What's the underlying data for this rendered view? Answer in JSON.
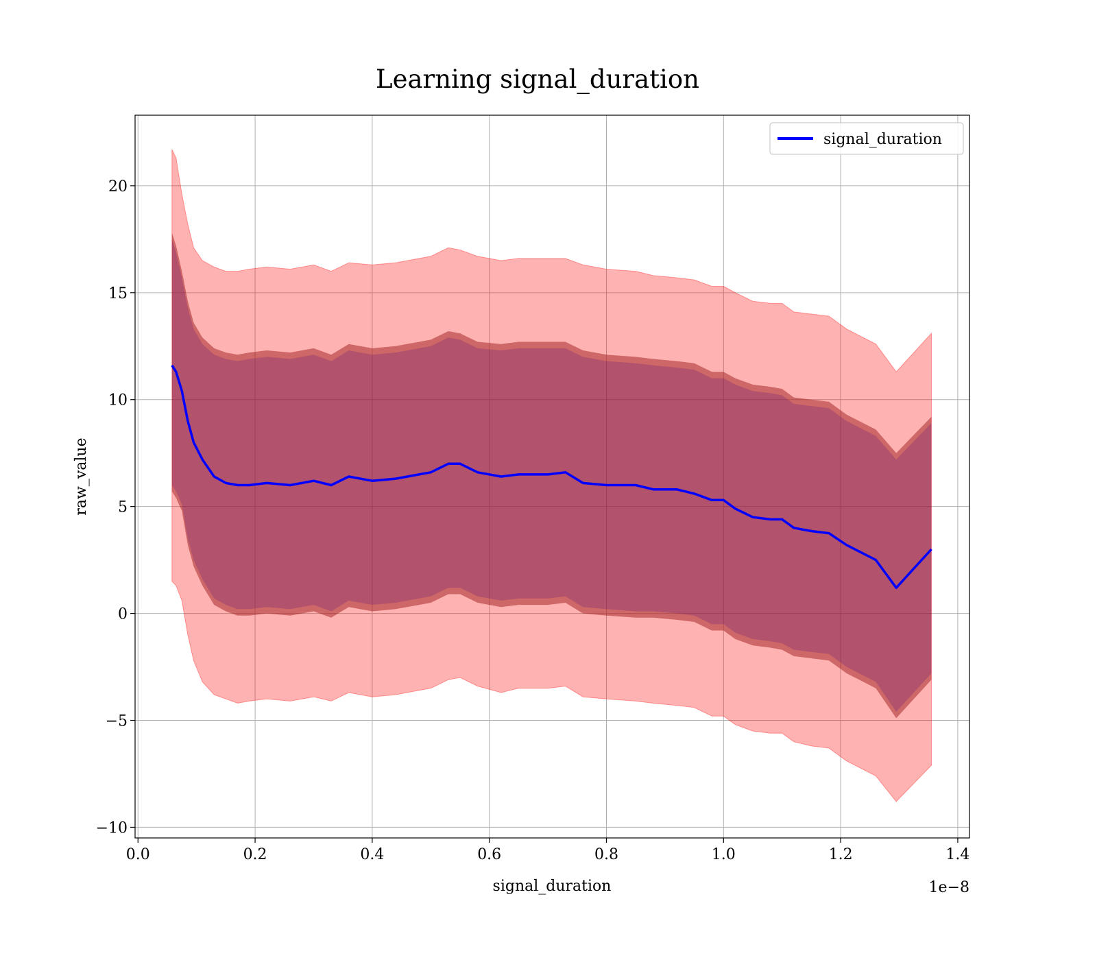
{
  "chart_data": {
    "type": "area",
    "title": "Learning signal_duration",
    "xlabel": "signal_duration",
    "ylabel": "raw_value",
    "x_offset_label": "1e−8",
    "xlim": [
      -0.005,
      1.42
    ],
    "ylim": [
      -10.5,
      23.3
    ],
    "x_ticks": [
      0.0,
      0.2,
      0.4,
      0.6,
      0.8,
      1.0,
      1.2,
      1.4
    ],
    "x_tick_labels": [
      "0.0",
      "0.2",
      "0.4",
      "0.6",
      "0.8",
      "1.0",
      "1.2",
      "1.4"
    ],
    "y_ticks": [
      -10,
      -5,
      0,
      5,
      10,
      15,
      20
    ],
    "y_tick_labels": [
      "−10",
      "−5",
      "0",
      "5",
      "10",
      "15",
      "20"
    ],
    "grid": true,
    "legend_position": "top-right",
    "colors": {
      "line": "#0000ff",
      "outer_band": "#ff0000",
      "inner_band": "#a52a2a",
      "mean_band": "#4b0082"
    },
    "x": [
      0.058,
      0.065,
      0.075,
      0.085,
      0.095,
      0.11,
      0.13,
      0.15,
      0.17,
      0.19,
      0.22,
      0.26,
      0.3,
      0.33,
      0.36,
      0.4,
      0.44,
      0.48,
      0.5,
      0.53,
      0.55,
      0.58,
      0.62,
      0.65,
      0.7,
      0.73,
      0.76,
      0.8,
      0.85,
      0.88,
      0.92,
      0.95,
      0.98,
      1.0,
      1.02,
      1.05,
      1.08,
      1.1,
      1.12,
      1.15,
      1.18,
      1.21,
      1.26,
      1.295,
      1.355
    ],
    "series": [
      {
        "name": "signal_duration",
        "values": [
          11.6,
          11.3,
          10.4,
          9.0,
          8.0,
          7.2,
          6.4,
          6.1,
          6.0,
          6.0,
          6.1,
          6.0,
          6.2,
          6.0,
          6.4,
          6.2,
          6.3,
          6.5,
          6.6,
          7.0,
          7.0,
          6.6,
          6.4,
          6.5,
          6.5,
          6.6,
          6.1,
          6.0,
          6.0,
          5.8,
          5.8,
          5.6,
          5.3,
          5.3,
          4.9,
          4.5,
          4.4,
          4.4,
          4.0,
          3.85,
          3.75,
          3.2,
          2.5,
          1.2,
          3.0
        ]
      }
    ],
    "bands": {
      "outer_upper": [
        21.7,
        21.3,
        19.6,
        18.2,
        17.1,
        16.5,
        16.2,
        16.0,
        16.0,
        16.1,
        16.2,
        16.1,
        16.3,
        16.0,
        16.4,
        16.3,
        16.4,
        16.6,
        16.7,
        17.1,
        17.0,
        16.7,
        16.5,
        16.6,
        16.6,
        16.6,
        16.3,
        16.1,
        16.0,
        15.8,
        15.7,
        15.6,
        15.3,
        15.3,
        15.0,
        14.6,
        14.5,
        14.5,
        14.1,
        14.0,
        13.9,
        13.3,
        12.6,
        11.3,
        13.1
      ],
      "outer_lower": [
        1.5,
        1.3,
        0.6,
        -1.0,
        -2.2,
        -3.2,
        -3.8,
        -4.0,
        -4.2,
        -4.1,
        -4.0,
        -4.1,
        -3.9,
        -4.1,
        -3.7,
        -3.9,
        -3.8,
        -3.6,
        -3.5,
        -3.1,
        -3.0,
        -3.4,
        -3.7,
        -3.5,
        -3.5,
        -3.4,
        -3.9,
        -4.0,
        -4.1,
        -4.2,
        -4.3,
        -4.4,
        -4.8,
        -4.8,
        -5.2,
        -5.5,
        -5.6,
        -5.6,
        -6.0,
        -6.2,
        -6.3,
        -6.9,
        -7.6,
        -8.8,
        -7.1
      ],
      "inner_upper": [
        17.8,
        17.2,
        16.0,
        14.6,
        13.6,
        12.9,
        12.4,
        12.2,
        12.1,
        12.2,
        12.3,
        12.2,
        12.4,
        12.1,
        12.6,
        12.4,
        12.5,
        12.7,
        12.8,
        13.2,
        13.1,
        12.7,
        12.6,
        12.7,
        12.7,
        12.7,
        12.3,
        12.1,
        12.0,
        11.9,
        11.8,
        11.7,
        11.3,
        11.3,
        11.0,
        10.7,
        10.6,
        10.5,
        10.1,
        10.0,
        9.9,
        9.3,
        8.6,
        7.5,
        9.2
      ],
      "inner_lower": [
        5.7,
        5.4,
        4.8,
        3.2,
        2.2,
        1.3,
        0.4,
        0.1,
        -0.1,
        -0.1,
        0.0,
        -0.1,
        0.1,
        -0.2,
        0.3,
        0.1,
        0.2,
        0.4,
        0.5,
        0.9,
        0.9,
        0.5,
        0.3,
        0.4,
        0.4,
        0.5,
        0.0,
        -0.1,
        -0.2,
        -0.2,
        -0.3,
        -0.4,
        -0.8,
        -0.8,
        -1.2,
        -1.5,
        -1.6,
        -1.7,
        -2.0,
        -2.1,
        -2.2,
        -2.8,
        -3.5,
        -4.9,
        -3.1
      ]
    }
  }
}
